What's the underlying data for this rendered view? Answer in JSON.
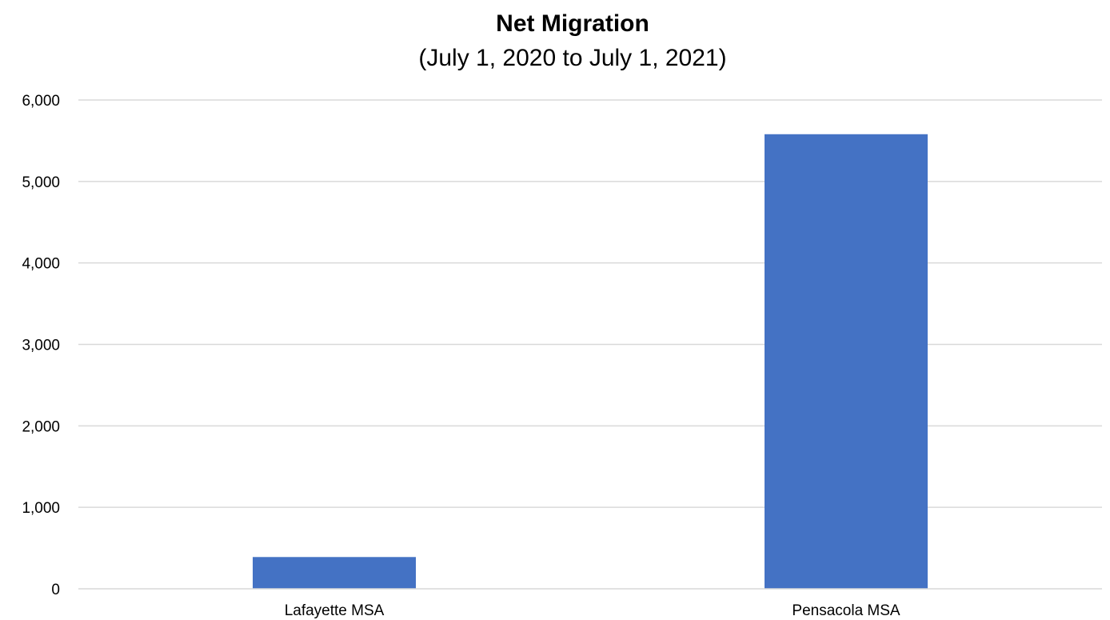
{
  "chart_data": {
    "type": "bar",
    "title": "Net Migration",
    "subtitle": "(July 1, 2020 to July 1, 2021)",
    "categories": [
      "Lafayette MSA",
      "Pensacola MSA"
    ],
    "values": [
      390,
      5580
    ],
    "xlabel": "",
    "ylabel": "",
    "ylim": [
      0,
      6000
    ],
    "yticks": [
      0,
      1000,
      2000,
      3000,
      4000,
      5000,
      6000
    ],
    "ytick_labels": [
      "0",
      "1,000",
      "2,000",
      "3,000",
      "4,000",
      "5,000",
      "6,000"
    ],
    "grid": true,
    "legend": "none",
    "bar_color": "#4472c4"
  }
}
